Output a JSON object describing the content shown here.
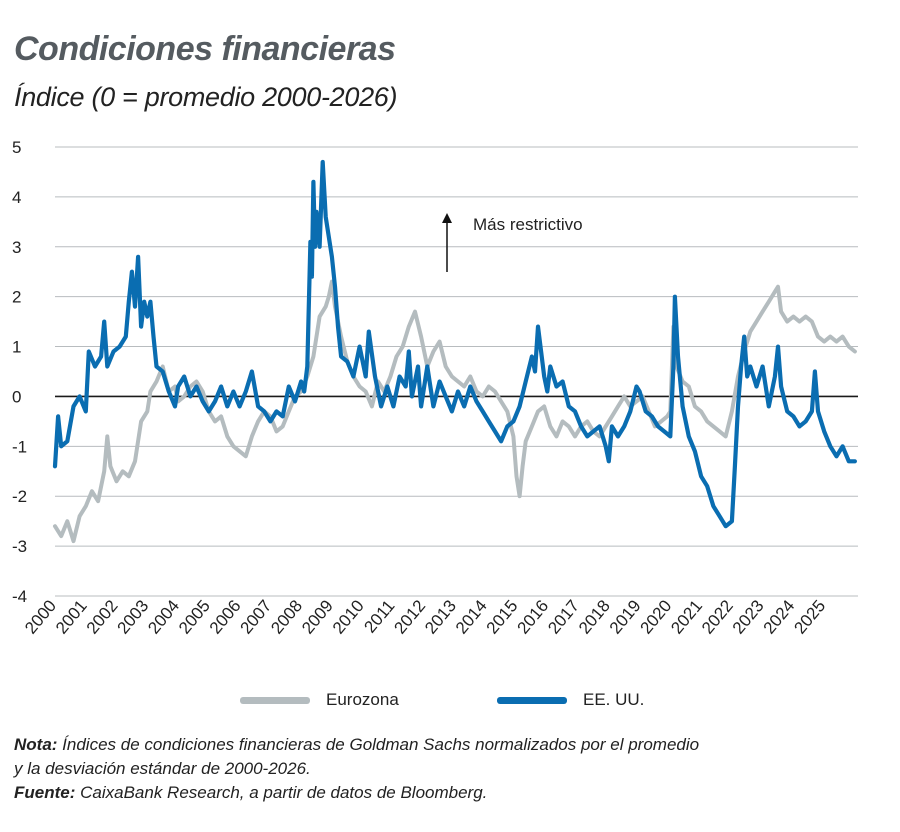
{
  "header": {
    "title": "Condiciones financieras",
    "subtitle": "Índice (0 = promedio 2000-2026)"
  },
  "annotation": {
    "text": "Más restrictivo"
  },
  "legend": {
    "eurozona": "Eurozona",
    "eeuu": "EE. UU."
  },
  "notes": {
    "nota_label": "Nota:",
    "nota_text": " Índices de condiciones financieras de Goldman Sachs normalizados por el promedio",
    "nota_text2": "y la desviación estándar de 2000-2026.",
    "fuente_label": "Fuente:",
    "fuente_text": " CaixaBank Research, a partir de datos de Bloomberg."
  },
  "colors": {
    "eurozona": "#b4bcbf",
    "eeuu": "#0a6db1",
    "grid": "#b8bcbf",
    "zero": "#1a1a1a"
  },
  "chart_data": {
    "type": "line",
    "title": "Condiciones financieras",
    "ylim": [
      -4,
      5
    ],
    "yticks": [
      5,
      4,
      3,
      2,
      1,
      0,
      -1,
      -2,
      -3,
      -4
    ],
    "xlim": [
      2000,
      2026.1
    ],
    "xticks": [
      "2000",
      "2001",
      "2002",
      "2003",
      "2004",
      "2005",
      "2006",
      "2007",
      "2008",
      "2009",
      "2010",
      "2011",
      "2012",
      "2013",
      "2014",
      "2015",
      "2016",
      "2017",
      "2018",
      "2019",
      "2020",
      "2021",
      "2022",
      "2023",
      "2024",
      "2025"
    ],
    "grid": true,
    "legend_position": "bottom",
    "series": [
      {
        "name": "Eurozona",
        "points": [
          [
            2000.0,
            -2.6
          ],
          [
            2000.2,
            -2.8
          ],
          [
            2000.4,
            -2.5
          ],
          [
            2000.6,
            -2.9
          ],
          [
            2000.8,
            -2.4
          ],
          [
            2001.0,
            -2.2
          ],
          [
            2001.2,
            -1.9
          ],
          [
            2001.4,
            -2.1
          ],
          [
            2001.6,
            -1.5
          ],
          [
            2001.7,
            -0.8
          ],
          [
            2001.8,
            -1.4
          ],
          [
            2002.0,
            -1.7
          ],
          [
            2002.2,
            -1.5
          ],
          [
            2002.4,
            -1.6
          ],
          [
            2002.6,
            -1.3
          ],
          [
            2002.8,
            -0.5
          ],
          [
            2003.0,
            -0.3
          ],
          [
            2003.1,
            0.1
          ],
          [
            2003.3,
            0.3
          ],
          [
            2003.5,
            0.6
          ],
          [
            2003.7,
            0.1
          ],
          [
            2003.9,
            0.2
          ],
          [
            2004.0,
            -0.1
          ],
          [
            2004.2,
            0.0
          ],
          [
            2004.4,
            0.2
          ],
          [
            2004.6,
            0.3
          ],
          [
            2004.8,
            0.1
          ],
          [
            2005.0,
            -0.3
          ],
          [
            2005.2,
            -0.5
          ],
          [
            2005.4,
            -0.4
          ],
          [
            2005.6,
            -0.8
          ],
          [
            2005.8,
            -1.0
          ],
          [
            2006.0,
            -1.1
          ],
          [
            2006.2,
            -1.2
          ],
          [
            2006.4,
            -0.8
          ],
          [
            2006.6,
            -0.5
          ],
          [
            2006.8,
            -0.3
          ],
          [
            2007.0,
            -0.4
          ],
          [
            2007.2,
            -0.7
          ],
          [
            2007.4,
            -0.6
          ],
          [
            2007.6,
            -0.3
          ],
          [
            2007.8,
            0.0
          ],
          [
            2008.0,
            0.1
          ],
          [
            2008.2,
            0.4
          ],
          [
            2008.4,
            0.8
          ],
          [
            2008.6,
            1.6
          ],
          [
            2008.8,
            1.8
          ],
          [
            2008.9,
            2.0
          ],
          [
            2009.0,
            2.3
          ],
          [
            2009.1,
            1.8
          ],
          [
            2009.3,
            1.2
          ],
          [
            2009.5,
            0.7
          ],
          [
            2009.7,
            0.4
          ],
          [
            2009.9,
            0.2
          ],
          [
            2010.1,
            0.1
          ],
          [
            2010.3,
            -0.2
          ],
          [
            2010.5,
            0.3
          ],
          [
            2010.7,
            0.1
          ],
          [
            2010.9,
            0.4
          ],
          [
            2011.1,
            0.8
          ],
          [
            2011.3,
            1.0
          ],
          [
            2011.5,
            1.4
          ],
          [
            2011.7,
            1.7
          ],
          [
            2011.9,
            1.2
          ],
          [
            2012.1,
            0.6
          ],
          [
            2012.3,
            0.9
          ],
          [
            2012.5,
            1.1
          ],
          [
            2012.7,
            0.6
          ],
          [
            2012.9,
            0.4
          ],
          [
            2013.1,
            0.3
          ],
          [
            2013.3,
            0.2
          ],
          [
            2013.5,
            0.4
          ],
          [
            2013.7,
            0.1
          ],
          [
            2013.9,
            0.0
          ],
          [
            2014.1,
            0.2
          ],
          [
            2014.3,
            0.1
          ],
          [
            2014.5,
            -0.1
          ],
          [
            2014.7,
            -0.3
          ],
          [
            2014.9,
            -0.8
          ],
          [
            2015.0,
            -1.6
          ],
          [
            2015.1,
            -2.0
          ],
          [
            2015.2,
            -1.4
          ],
          [
            2015.3,
            -0.9
          ],
          [
            2015.5,
            -0.6
          ],
          [
            2015.7,
            -0.3
          ],
          [
            2015.9,
            -0.2
          ],
          [
            2016.1,
            -0.6
          ],
          [
            2016.3,
            -0.8
          ],
          [
            2016.5,
            -0.5
          ],
          [
            2016.7,
            -0.6
          ],
          [
            2016.9,
            -0.8
          ],
          [
            2017.1,
            -0.6
          ],
          [
            2017.3,
            -0.5
          ],
          [
            2017.5,
            -0.7
          ],
          [
            2017.7,
            -0.8
          ],
          [
            2017.9,
            -0.6
          ],
          [
            2018.1,
            -0.4
          ],
          [
            2018.3,
            -0.2
          ],
          [
            2018.5,
            0.0
          ],
          [
            2018.7,
            -0.2
          ],
          [
            2018.9,
            -0.1
          ],
          [
            2019.1,
            0.0
          ],
          [
            2019.3,
            -0.3
          ],
          [
            2019.5,
            -0.6
          ],
          [
            2019.7,
            -0.5
          ],
          [
            2019.9,
            -0.4
          ],
          [
            2020.0,
            -0.3
          ],
          [
            2020.1,
            1.4
          ],
          [
            2020.2,
            0.6
          ],
          [
            2020.4,
            0.3
          ],
          [
            2020.6,
            0.2
          ],
          [
            2020.8,
            -0.2
          ],
          [
            2021.0,
            -0.3
          ],
          [
            2021.2,
            -0.5
          ],
          [
            2021.4,
            -0.6
          ],
          [
            2021.6,
            -0.7
          ],
          [
            2021.8,
            -0.8
          ],
          [
            2022.0,
            -0.3
          ],
          [
            2022.2,
            0.4
          ],
          [
            2022.4,
            0.9
          ],
          [
            2022.6,
            1.3
          ],
          [
            2022.8,
            1.5
          ],
          [
            2023.0,
            1.7
          ],
          [
            2023.2,
            1.9
          ],
          [
            2023.4,
            2.1
          ],
          [
            2023.5,
            2.2
          ],
          [
            2023.6,
            1.7
          ],
          [
            2023.8,
            1.5
          ],
          [
            2024.0,
            1.6
          ],
          [
            2024.2,
            1.5
          ],
          [
            2024.4,
            1.6
          ],
          [
            2024.6,
            1.5
          ],
          [
            2024.8,
            1.2
          ],
          [
            2025.0,
            1.1
          ],
          [
            2025.2,
            1.2
          ],
          [
            2025.4,
            1.1
          ],
          [
            2025.6,
            1.2
          ],
          [
            2025.8,
            1.0
          ],
          [
            2026.0,
            0.9
          ]
        ]
      },
      {
        "name": "EE. UU.",
        "points": [
          [
            2000.0,
            -1.4
          ],
          [
            2000.1,
            -0.4
          ],
          [
            2000.2,
            -1.0
          ],
          [
            2000.4,
            -0.9
          ],
          [
            2000.6,
            -0.2
          ],
          [
            2000.8,
            0.0
          ],
          [
            2001.0,
            -0.3
          ],
          [
            2001.1,
            0.9
          ],
          [
            2001.3,
            0.6
          ],
          [
            2001.5,
            0.8
          ],
          [
            2001.6,
            1.5
          ],
          [
            2001.7,
            0.6
          ],
          [
            2001.9,
            0.9
          ],
          [
            2002.1,
            1.0
          ],
          [
            2002.3,
            1.2
          ],
          [
            2002.4,
            1.9
          ],
          [
            2002.5,
            2.5
          ],
          [
            2002.6,
            1.8
          ],
          [
            2002.7,
            2.8
          ],
          [
            2002.8,
            1.4
          ],
          [
            2002.9,
            1.9
          ],
          [
            2003.0,
            1.6
          ],
          [
            2003.1,
            1.9
          ],
          [
            2003.2,
            1.2
          ],
          [
            2003.3,
            0.6
          ],
          [
            2003.5,
            0.5
          ],
          [
            2003.7,
            0.1
          ],
          [
            2003.9,
            -0.2
          ],
          [
            2004.0,
            0.2
          ],
          [
            2004.2,
            0.4
          ],
          [
            2004.4,
            0.0
          ],
          [
            2004.6,
            0.2
          ],
          [
            2004.8,
            -0.1
          ],
          [
            2005.0,
            -0.3
          ],
          [
            2005.2,
            -0.1
          ],
          [
            2005.4,
            0.2
          ],
          [
            2005.6,
            -0.2
          ],
          [
            2005.8,
            0.1
          ],
          [
            2006.0,
            -0.2
          ],
          [
            2006.2,
            0.1
          ],
          [
            2006.4,
            0.5
          ],
          [
            2006.6,
            -0.2
          ],
          [
            2006.8,
            -0.3
          ],
          [
            2007.0,
            -0.5
          ],
          [
            2007.2,
            -0.3
          ],
          [
            2007.4,
            -0.4
          ],
          [
            2007.6,
            0.2
          ],
          [
            2007.8,
            -0.1
          ],
          [
            2008.0,
            0.3
          ],
          [
            2008.1,
            0.1
          ],
          [
            2008.2,
            0.6
          ],
          [
            2008.3,
            3.1
          ],
          [
            2008.35,
            2.4
          ],
          [
            2008.4,
            4.3
          ],
          [
            2008.45,
            3.0
          ],
          [
            2008.5,
            3.7
          ],
          [
            2008.6,
            3.0
          ],
          [
            2008.7,
            4.7
          ],
          [
            2008.8,
            3.6
          ],
          [
            2008.9,
            3.2
          ],
          [
            2009.0,
            2.8
          ],
          [
            2009.1,
            2.2
          ],
          [
            2009.2,
            1.4
          ],
          [
            2009.3,
            0.8
          ],
          [
            2009.5,
            0.7
          ],
          [
            2009.7,
            0.4
          ],
          [
            2009.9,
            1.0
          ],
          [
            2010.1,
            0.4
          ],
          [
            2010.2,
            1.3
          ],
          [
            2010.4,
            0.4
          ],
          [
            2010.6,
            -0.2
          ],
          [
            2010.8,
            0.2
          ],
          [
            2011.0,
            -0.2
          ],
          [
            2011.2,
            0.4
          ],
          [
            2011.4,
            0.2
          ],
          [
            2011.5,
            0.9
          ],
          [
            2011.6,
            0.0
          ],
          [
            2011.8,
            0.6
          ],
          [
            2011.9,
            -0.2
          ],
          [
            2012.1,
            0.6
          ],
          [
            2012.3,
            -0.2
          ],
          [
            2012.5,
            0.3
          ],
          [
            2012.7,
            0.0
          ],
          [
            2012.9,
            -0.3
          ],
          [
            2013.1,
            0.1
          ],
          [
            2013.3,
            -0.2
          ],
          [
            2013.5,
            0.2
          ],
          [
            2013.7,
            -0.1
          ],
          [
            2013.9,
            -0.3
          ],
          [
            2014.1,
            -0.5
          ],
          [
            2014.3,
            -0.7
          ],
          [
            2014.5,
            -0.9
          ],
          [
            2014.7,
            -0.6
          ],
          [
            2014.9,
            -0.5
          ],
          [
            2015.1,
            -0.2
          ],
          [
            2015.3,
            0.3
          ],
          [
            2015.5,
            0.8
          ],
          [
            2015.6,
            0.5
          ],
          [
            2015.7,
            1.4
          ],
          [
            2015.8,
            0.9
          ],
          [
            2015.9,
            0.4
          ],
          [
            2016.0,
            0.1
          ],
          [
            2016.1,
            0.6
          ],
          [
            2016.3,
            0.2
          ],
          [
            2016.5,
            0.3
          ],
          [
            2016.7,
            -0.2
          ],
          [
            2016.9,
            -0.3
          ],
          [
            2017.1,
            -0.6
          ],
          [
            2017.3,
            -0.8
          ],
          [
            2017.5,
            -0.7
          ],
          [
            2017.7,
            -0.6
          ],
          [
            2017.9,
            -1.0
          ],
          [
            2018.0,
            -1.3
          ],
          [
            2018.1,
            -0.6
          ],
          [
            2018.3,
            -0.8
          ],
          [
            2018.5,
            -0.6
          ],
          [
            2018.7,
            -0.3
          ],
          [
            2018.9,
            0.2
          ],
          [
            2019.0,
            0.1
          ],
          [
            2019.2,
            -0.3
          ],
          [
            2019.4,
            -0.4
          ],
          [
            2019.6,
            -0.6
          ],
          [
            2019.8,
            -0.7
          ],
          [
            2020.0,
            -0.8
          ],
          [
            2020.1,
            0.6
          ],
          [
            2020.15,
            2.0
          ],
          [
            2020.25,
            0.8
          ],
          [
            2020.4,
            -0.2
          ],
          [
            2020.6,
            -0.8
          ],
          [
            2020.8,
            -1.1
          ],
          [
            2021.0,
            -1.6
          ],
          [
            2021.2,
            -1.8
          ],
          [
            2021.4,
            -2.2
          ],
          [
            2021.6,
            -2.4
          ],
          [
            2021.8,
            -2.6
          ],
          [
            2022.0,
            -2.5
          ],
          [
            2022.1,
            -1.4
          ],
          [
            2022.2,
            -0.2
          ],
          [
            2022.3,
            0.6
          ],
          [
            2022.4,
            1.2
          ],
          [
            2022.5,
            0.4
          ],
          [
            2022.6,
            0.6
          ],
          [
            2022.8,
            0.2
          ],
          [
            2023.0,
            0.6
          ],
          [
            2023.2,
            -0.2
          ],
          [
            2023.4,
            0.4
          ],
          [
            2023.5,
            1.0
          ],
          [
            2023.6,
            0.2
          ],
          [
            2023.8,
            -0.3
          ],
          [
            2024.0,
            -0.4
          ],
          [
            2024.2,
            -0.6
          ],
          [
            2024.4,
            -0.5
          ],
          [
            2024.6,
            -0.3
          ],
          [
            2024.7,
            0.5
          ],
          [
            2024.8,
            -0.3
          ],
          [
            2025.0,
            -0.7
          ],
          [
            2025.2,
            -1.0
          ],
          [
            2025.4,
            -1.2
          ],
          [
            2025.6,
            -1.0
          ],
          [
            2025.8,
            -1.3
          ],
          [
            2026.0,
            -1.3
          ]
        ]
      }
    ]
  }
}
